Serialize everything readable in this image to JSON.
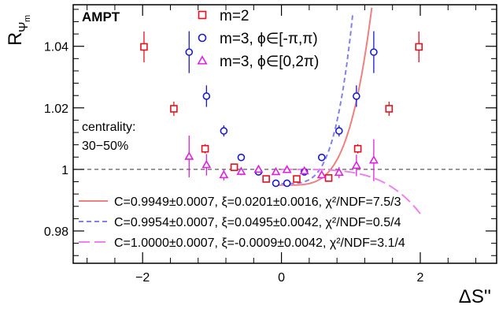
{
  "chart_data": {
    "type": "scatter",
    "title": "",
    "tag": "AMPT",
    "ylabel": "R",
    "ylabel_sub": "Ψ",
    "ylabel_subsub": "m",
    "xlabel": "ΔS''",
    "xlim": [
      -3.0,
      3.1
    ],
    "ylim": [
      0.9695,
      1.0535
    ],
    "xticks": [
      -2,
      0,
      2
    ],
    "xtick_labels": [
      "−2",
      "0",
      "2"
    ],
    "yticks": [
      0.98,
      1.0,
      1.02,
      1.04
    ],
    "ytick_labels": [
      "0.98",
      "1",
      "1.02",
      "1.04"
    ],
    "reference_line": 1.0,
    "annotation_lines": [
      "centrality:",
      "30−50%"
    ],
    "legend": [
      {
        "label": "m=2",
        "marker": "square",
        "color": "#e8101f"
      },
      {
        "label": "m=3, ϕ∈[-π,π)",
        "marker": "circle",
        "color": "#1a1ad6"
      },
      {
        "label": "m=3, ϕ∈[0,2π)",
        "marker": "triangle",
        "color": "#e020e0"
      }
    ],
    "series": [
      {
        "name": "m=2",
        "marker": "square",
        "color": "#e8101f",
        "points": [
          {
            "x": -1.98,
            "y": 1.0398,
            "err": 0.005
          },
          {
            "x": -1.55,
            "y": 1.0197,
            "err": 0.0023
          },
          {
            "x": -1.1,
            "y": 1.0067,
            "err": 0.0015
          },
          {
            "x": -0.68,
            "y": 1.0007,
            "err": 0.001
          },
          {
            "x": -0.22,
            "y": 0.9969,
            "err": 0.0008
          },
          {
            "x": 0.22,
            "y": 0.9969,
            "err": 0.0008
          },
          {
            "x": 0.68,
            "y": 0.9972,
            "err": 0.001
          },
          {
            "x": 1.1,
            "y": 1.0067,
            "err": 0.0015
          },
          {
            "x": 1.55,
            "y": 1.0197,
            "err": 0.0023
          },
          {
            "x": 1.98,
            "y": 1.0398,
            "err": 0.005
          }
        ]
      },
      {
        "name": "m=3, ϕ∈[-π,π)",
        "marker": "circle",
        "color": "#1a1ad6",
        "points": [
          {
            "x": -1.33,
            "y": 1.0381,
            "err": 0.0068
          },
          {
            "x": -1.08,
            "y": 1.0238,
            "err": 0.0035
          },
          {
            "x": -0.83,
            "y": 1.0125,
            "err": 0.0018
          },
          {
            "x": -0.58,
            "y": 1.0039,
            "err": 0.0012
          },
          {
            "x": -0.33,
            "y": 0.9992,
            "err": 0.001
          },
          {
            "x": -0.08,
            "y": 0.9955,
            "err": 0.0008
          },
          {
            "x": 0.08,
            "y": 0.9955,
            "err": 0.0008
          },
          {
            "x": 0.33,
            "y": 0.9992,
            "err": 0.001
          },
          {
            "x": 0.58,
            "y": 1.0039,
            "err": 0.0012
          },
          {
            "x": 0.83,
            "y": 1.0125,
            "err": 0.0018
          },
          {
            "x": 1.08,
            "y": 1.0238,
            "err": 0.0035
          },
          {
            "x": 1.33,
            "y": 1.0381,
            "err": 0.0068
          }
        ]
      },
      {
        "name": "m=3, ϕ∈[0,2π)",
        "marker": "triangle",
        "color": "#e020e0",
        "points": [
          {
            "x": -1.33,
            "y": 1.0042,
            "err": 0.0068
          },
          {
            "x": -1.08,
            "y": 1.0015,
            "err": 0.0035
          },
          {
            "x": -0.83,
            "y": 0.9982,
            "err": 0.0018
          },
          {
            "x": -0.58,
            "y": 0.9993,
            "err": 0.0012
          },
          {
            "x": -0.33,
            "y": 1.0,
            "err": 0.001
          },
          {
            "x": -0.08,
            "y": 0.9992,
            "err": 0.0008
          },
          {
            "x": 0.08,
            "y": 0.9999,
            "err": 0.0008
          },
          {
            "x": 0.33,
            "y": 0.9995,
            "err": 0.001
          },
          {
            "x": 0.58,
            "y": 0.9982,
            "err": 0.0012
          },
          {
            "x": 0.83,
            "y": 0.999,
            "err": 0.0018
          },
          {
            "x": 1.08,
            "y": 1.0013,
            "err": 0.0035
          },
          {
            "x": 1.33,
            "y": 1.003,
            "err": 0.0068
          }
        ]
      }
    ],
    "fits": [
      {
        "label": "C=0.9949±0.0007, ξ=0.0201±0.0016,  χ²/NDF=7.5/3",
        "line": "solid",
        "color": "#f08080",
        "C": 0.9949,
        "xi": 0.0201,
        "power": 4,
        "x_range": [
          -0.05,
          2.25
        ]
      },
      {
        "label": "C=0.9954±0.0007, ξ=0.0495±0.0042,  χ²/NDF=0.5/4",
        "line": "dashed",
        "color": "#8080f0",
        "C": 0.9954,
        "xi": 0.0495,
        "power": 4,
        "x_range": [
          0.0,
          1.42
        ]
      },
      {
        "label": "C=1.0000±0.0007, ξ=-0.0009±0.0042, χ²/NDF=3.1/4",
        "line": "longdash",
        "color": "#f080f0",
        "C": 1.0,
        "xi": -0.0009,
        "power": 4,
        "x_range": [
          0.0,
          2.0
        ]
      }
    ]
  }
}
